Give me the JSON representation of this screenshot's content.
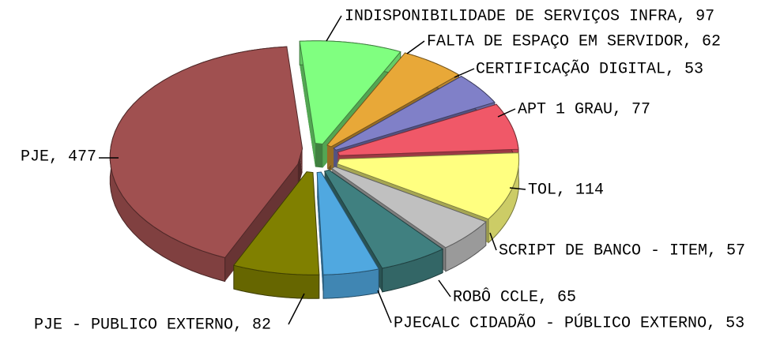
{
  "chart_data": {
    "type": "pie3d",
    "values": [
      97,
      62,
      53,
      77,
      114,
      57,
      65,
      53,
      82,
      477
    ],
    "value_labels": [
      "INDISPONIBILIDADE DE SERVIÇOS INFRA, 97",
      "FALTA DE ESPAÇO EM SERVIDOR, 62",
      "CERTIFICAÇÃO DIGITAL, 53",
      "APT 1 GRAU, 77",
      "TOL, 114",
      "SCRIPT DE BANCO - ITEM, 57",
      "ROBÔ CCLE, 65",
      "PJECALC CIDADÃO - PÚBLICO EXTERNO, 53",
      "PJE - PUBLICO EXTERNO, 82",
      "PJE, 477"
    ],
    "colors": [
      "#80ff80",
      "#e8a838",
      "#8080c8",
      "#f05868",
      "#ffff80",
      "#c0c0c0",
      "#408080",
      "#50a8e0",
      "#808000",
      "#a05050"
    ]
  }
}
